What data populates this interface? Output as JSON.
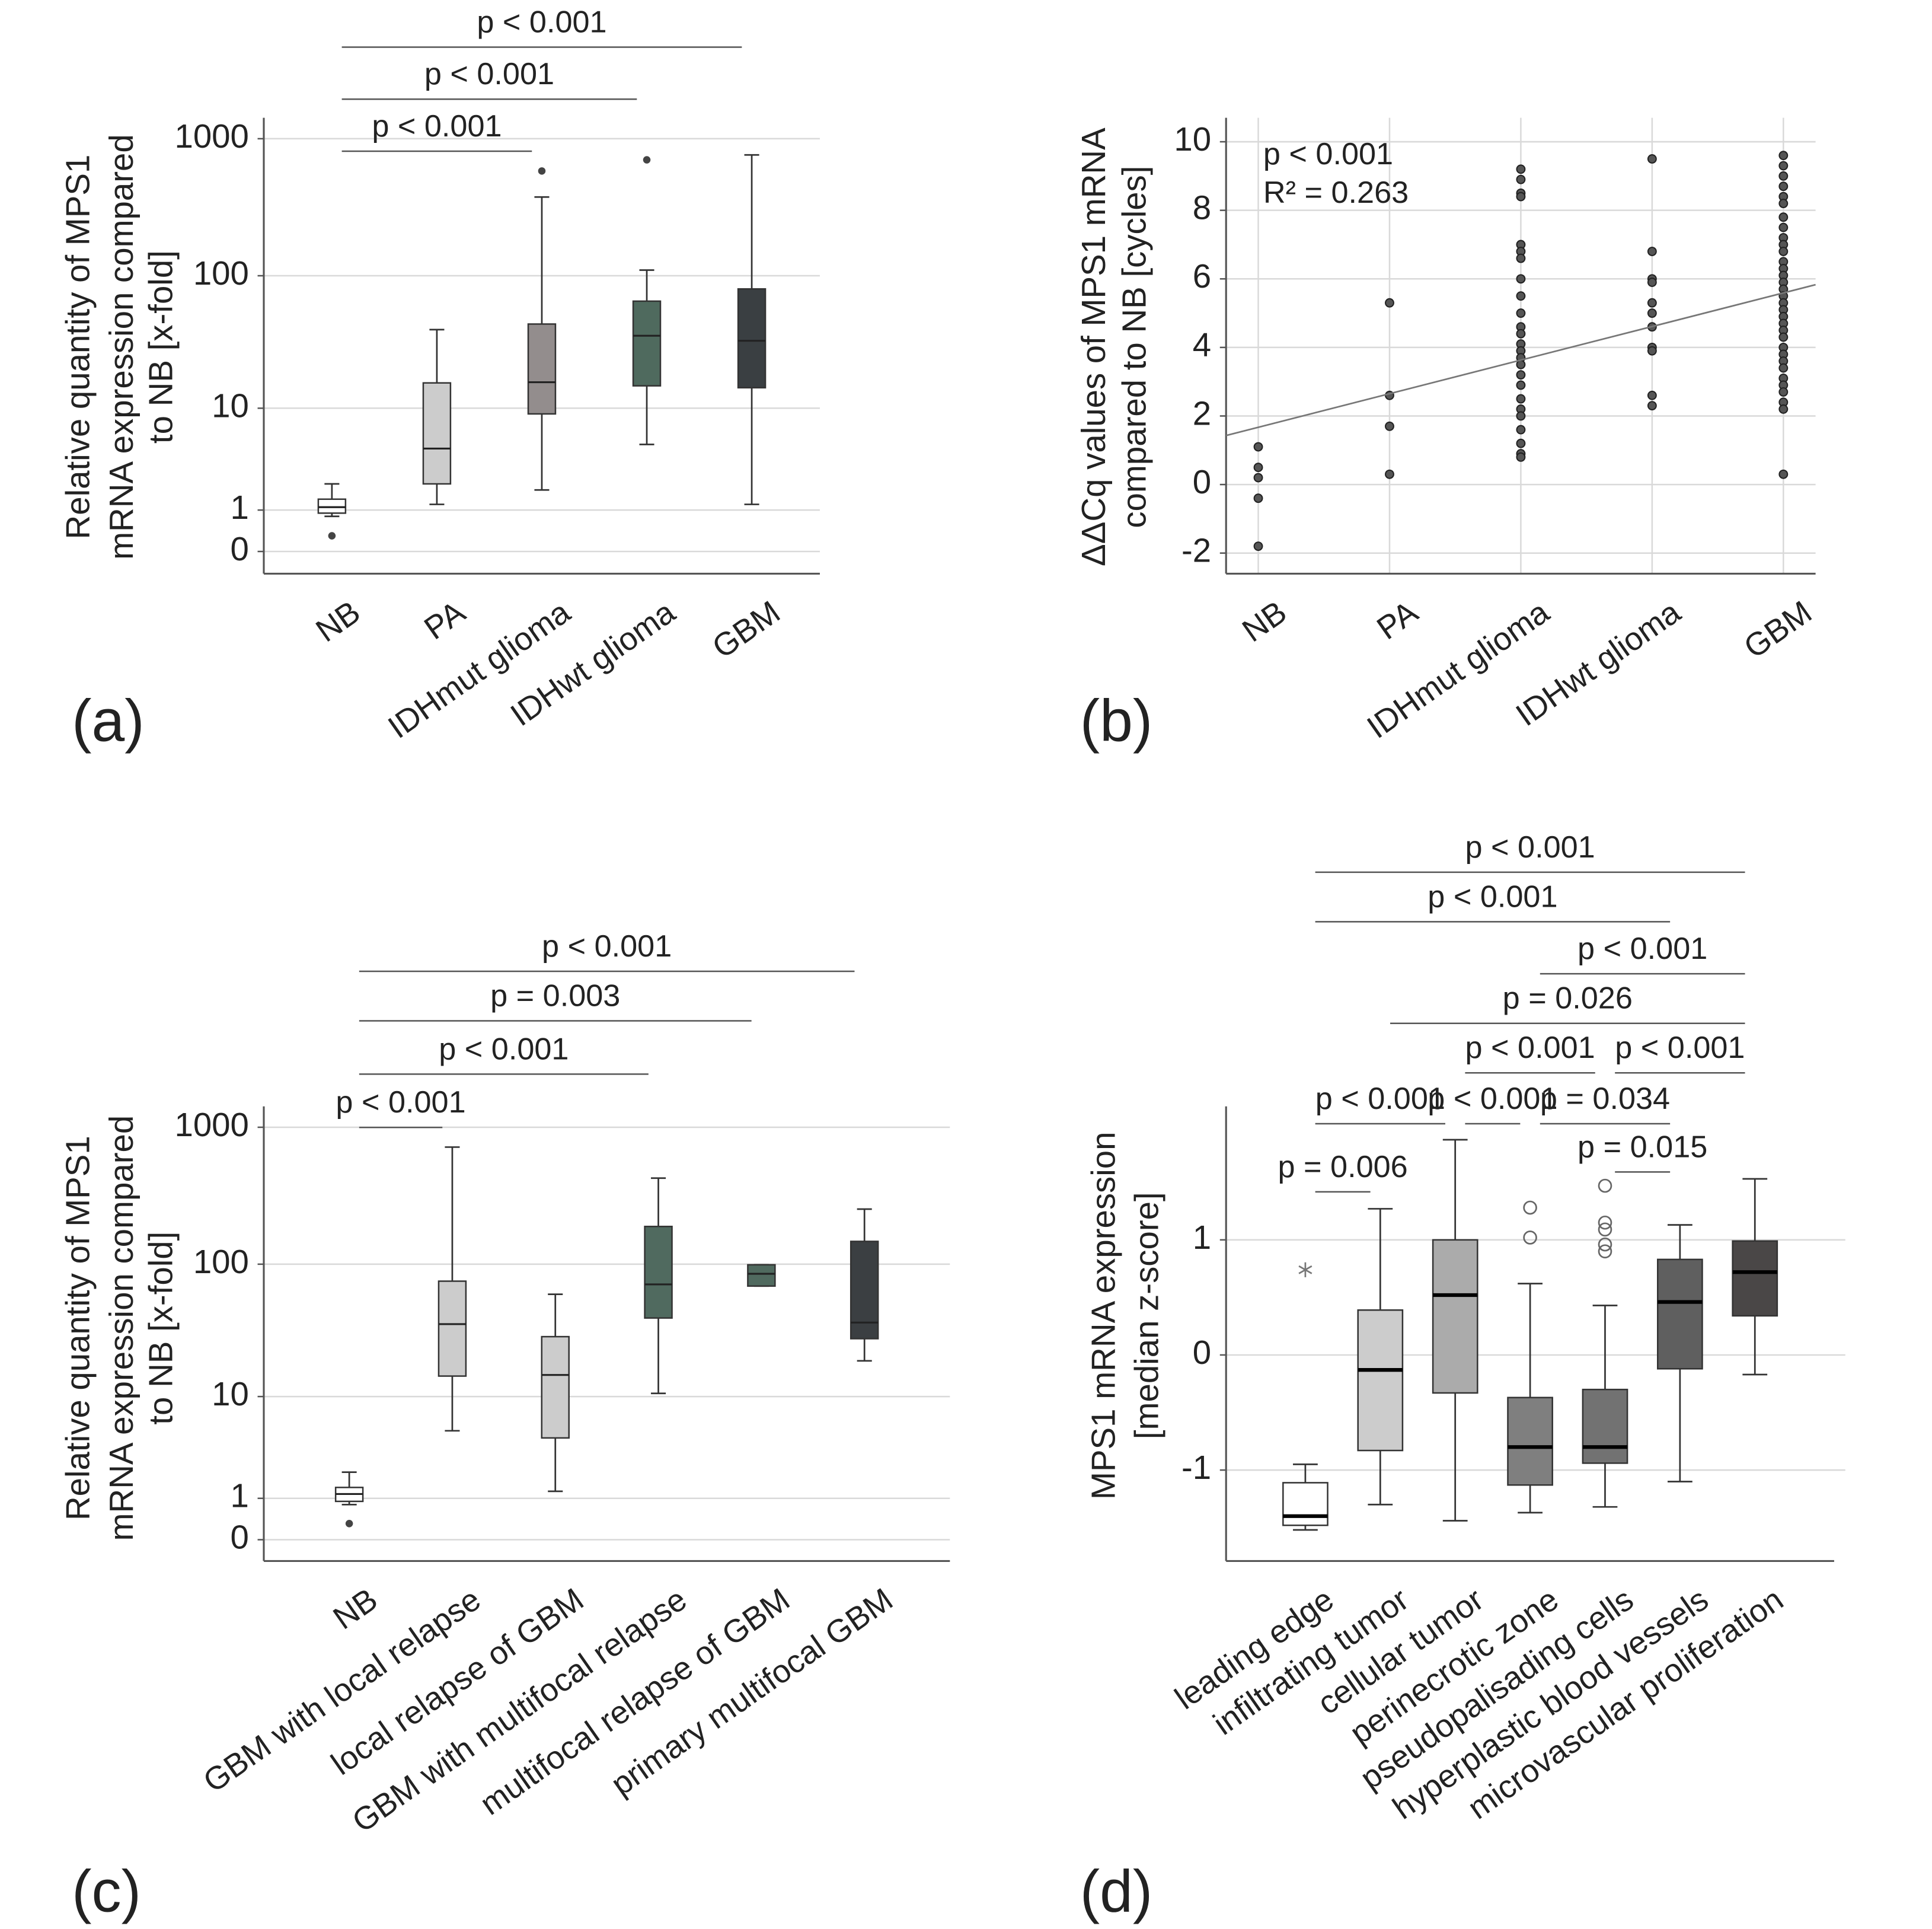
{
  "chart_data": [
    {
      "type": "box",
      "panel": "(a)",
      "ylabel": [
        "Relative quantity of MPS1",
        "mRNA expression compared",
        "to NB [x-fold]"
      ],
      "yscale": "log(x+1)",
      "ylim": [
        -0.31,
        1420
      ],
      "yticks": [
        0,
        1,
        10,
        100,
        1000
      ],
      "grid": true,
      "categories": [
        "NB",
        "PA",
        "IDHmut glioma",
        "IDHwt glioma",
        "GBM"
      ],
      "colors": [
        "#ffffff",
        "#cccccc",
        "#938d8d",
        "#4f6a5e",
        "#3a3f42"
      ],
      "outlier_style": "dot",
      "boxes": [
        {
          "low": 0.8,
          "q1": 0.9,
          "median": 1.1,
          "q3": 1.4,
          "high": 2.1,
          "outliers": [
            0.3
          ]
        },
        {
          "low": 1.2,
          "q1": 2.1,
          "median": 4.6,
          "q3": 15.8,
          "high": 40,
          "outliers": []
        },
        {
          "low": 1.8,
          "q1": 9,
          "median": 16,
          "q3": 44,
          "high": 376,
          "outliers": [
            582
          ]
        },
        {
          "low": 5,
          "q1": 15,
          "median": 36,
          "q3": 65,
          "high": 110,
          "outliers": [
            702
          ]
        },
        {
          "low": 1.2,
          "q1": 14.5,
          "median": 33,
          "q3": 80,
          "high": 762,
          "outliers": []
        }
      ],
      "annotations": [
        {
          "text": "p < 0.001",
          "from": 0,
          "to": 2
        },
        {
          "text": "p < 0.001",
          "from": 0,
          "to": 3
        },
        {
          "text": "p < 0.001",
          "from": 0,
          "to": 4
        }
      ]
    },
    {
      "type": "scatter",
      "panel": "(b)",
      "ylabel": [
        "ΔΔCq values of MPS1 mRNA",
        "compared to NB [cycles]"
      ],
      "ylim": [
        -2.6,
        10.7
      ],
      "yticks": [
        -2,
        0,
        2,
        4,
        6,
        8,
        10
      ],
      "grid": true,
      "xgrid": true,
      "categories": [
        "NB",
        "PA",
        "IDHmut glioma",
        "IDHwt glioma",
        "GBM"
      ],
      "color": "#555555",
      "values": [
        [
          1.1,
          0.5,
          0.2,
          -0.4,
          -1.8
        ],
        [
          5.3,
          2.6,
          1.7,
          0.3
        ],
        [
          9.2,
          8.9,
          8.5,
          8.4,
          7.0,
          6.8,
          6.6,
          6.0,
          5.5,
          5.0,
          4.6,
          4.4,
          4.1,
          3.9,
          3.7,
          3.5,
          3.2,
          2.9,
          2.5,
          2.2,
          2.0,
          1.6,
          1.2,
          0.9,
          0.8
        ],
        [
          9.5,
          6.8,
          6.0,
          5.9,
          5.3,
          5.0,
          4.6,
          4.0,
          3.9,
          2.6,
          2.3
        ],
        [
          9.6,
          9.3,
          9.0,
          8.7,
          8.4,
          8.2,
          7.8,
          7.5,
          7.2,
          7.0,
          6.8,
          6.5,
          6.3,
          6.1,
          5.9,
          5.7,
          5.5,
          5.3,
          5.1,
          4.9,
          4.7,
          4.5,
          4.3,
          4.0,
          3.8,
          3.6,
          3.4,
          3.1,
          2.9,
          2.7,
          2.4,
          2.2,
          0.3
        ]
      ],
      "trendline": {
        "intercept": 1.67,
        "slope": 0.98
      },
      "notes": [
        "p < 0.001",
        "R² = 0.263"
      ]
    },
    {
      "type": "box",
      "panel": "(c)",
      "ylabel": [
        "Relative quantity of MPS1",
        "mRNA expression compared",
        "to NB [x-fold]"
      ],
      "yscale": "log(x+1)",
      "ylim": [
        -0.3,
        1420
      ],
      "yticks": [
        0,
        1,
        10,
        100,
        1000
      ],
      "grid": true,
      "categories": [
        "NB",
        "GBM with local relapse",
        "local relapse of GBM",
        "GBM with multifocal relapse",
        "multifocal relapse of GBM",
        "primary multifocal GBM"
      ],
      "colors": [
        "#ffffff",
        "#cccccc",
        "#cccccc",
        "#506a5f",
        "#506a5f",
        "#3b3f42"
      ],
      "outlier_style": "dot",
      "boxes": [
        {
          "low": 0.8,
          "q1": 0.9,
          "median": 1.15,
          "q3": 1.4,
          "high": 2.1,
          "outliers": [
            0.31
          ]
        },
        {
          "low": 5.2,
          "q1": 14.5,
          "median": 36,
          "q3": 75,
          "high": 717,
          "outliers": []
        },
        {
          "low": 1.25,
          "q1": 4.5,
          "median": 14.8,
          "q3": 29,
          "high": 60,
          "outliers": []
        },
        {
          "low": 10.6,
          "q1": 40,
          "median": 71,
          "q3": 189,
          "high": 426,
          "outliers": []
        },
        {
          "low": 69,
          "q1": 69,
          "median": 85,
          "q3": 99,
          "high": 99,
          "outliers": []
        },
        {
          "low": 19,
          "q1": 28,
          "median": 37,
          "q3": 147,
          "high": 253,
          "outliers": []
        }
      ],
      "annotations": [
        {
          "text": "p < 0.001",
          "from": 0,
          "to": 1
        },
        {
          "text": "p < 0.001",
          "from": 0,
          "to": 3
        },
        {
          "text": "p = 0.003",
          "from": 0,
          "to": 4
        },
        {
          "text": "p < 0.001",
          "from": 0,
          "to": 5
        }
      ]
    },
    {
      "type": "box",
      "panel": "(d)",
      "ylabel": [
        "MPS1 mRNA expression",
        "[median z-score]"
      ],
      "ylim": [
        -1.79,
        2.16
      ],
      "yticks": [
        -1,
        0,
        1
      ],
      "grid": true,
      "categories": [
        "leading edge",
        "infiltrating tumor",
        "cellular tumor",
        "perinecrotic zone",
        "pseudopalisading cells",
        "hyperplastic blood vessels",
        "microvascular proliferation"
      ],
      "colors": [
        "#ffffff",
        "#cccccc",
        "#ababab",
        "#7f7f7f",
        "#727272",
        "#5f5f5f",
        "#4a4747"
      ],
      "outlier_style": "circle",
      "boxes": [
        {
          "low": -1.52,
          "q1": -1.48,
          "median": -1.4,
          "q3": -1.11,
          "high": -0.95,
          "outliers": [],
          "extremes": [
            0.74
          ]
        },
        {
          "low": -1.3,
          "q1": -0.83,
          "median": -0.13,
          "q3": 0.39,
          "high": 1.27,
          "outliers": []
        },
        {
          "low": -1.44,
          "q1": -0.33,
          "median": 0.52,
          "q3": 1.0,
          "high": 1.87,
          "outliers": []
        },
        {
          "low": -1.37,
          "q1": -1.13,
          "median": -0.8,
          "q3": -0.37,
          "high": 0.62,
          "outliers": [
            1.28,
            1.02
          ]
        },
        {
          "low": -1.32,
          "q1": -0.94,
          "median": -0.8,
          "q3": -0.3,
          "high": 0.43,
          "outliers": [
            1.47,
            1.15,
            1.09,
            0.96,
            0.9
          ]
        },
        {
          "low": -1.1,
          "q1": -0.12,
          "median": 0.46,
          "q3": 0.83,
          "high": 1.13,
          "outliers": []
        },
        {
          "low": -0.17,
          "q1": 0.34,
          "median": 0.72,
          "q3": 0.99,
          "high": 1.53,
          "outliers": []
        }
      ],
      "annotations": [
        {
          "text": "p < 0.001",
          "from": 0,
          "to": 6
        },
        {
          "text": "p < 0.001",
          "from": 0,
          "to": 5
        },
        {
          "text": "p < 0.001",
          "from": 3,
          "to": 6
        },
        {
          "text": "p = 0.026",
          "from": 1,
          "to": 6
        },
        {
          "text": "p < 0.001",
          "from": 2,
          "to": 4
        },
        {
          "text": "p < 0.001",
          "from": 4,
          "to": 6
        },
        {
          "text": "p < 0.001",
          "from": 0,
          "to": 2
        },
        {
          "text": "p < 0.001",
          "from": 2,
          "to": 3
        },
        {
          "text": "p = 0.034",
          "from": 3,
          "to": 5
        },
        {
          "text": "p = 0.015",
          "from": 4,
          "to": 5
        },
        {
          "text": "p = 0.006",
          "from": 0,
          "to": 1
        }
      ]
    }
  ]
}
